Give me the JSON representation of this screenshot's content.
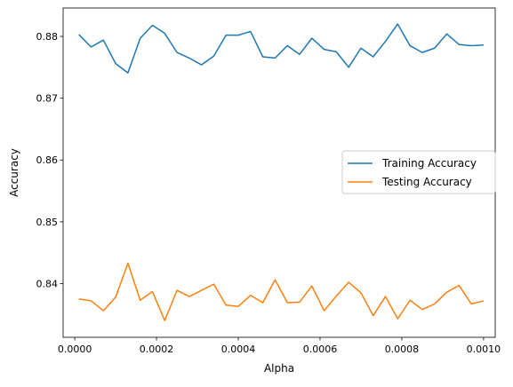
{
  "chart_data": {
    "type": "line",
    "title": "",
    "xlabel": "Alpha",
    "ylabel": "Accuracy",
    "xlim": [
      -2.85e-05,
      0.0010285
    ],
    "ylim": [
      0.8313,
      0.8846
    ],
    "x_ticks": [
      0.0,
      0.0002,
      0.0004,
      0.0006,
      0.0008,
      0.001
    ],
    "x_tick_labels": [
      "0.0000",
      "0.0002",
      "0.0004",
      "0.0006",
      "0.0008",
      "0.0010"
    ],
    "y_ticks": [
      0.84,
      0.85,
      0.86,
      0.87,
      0.88
    ],
    "y_tick_labels": [
      "0.84",
      "0.85",
      "0.86",
      "0.87",
      "0.88"
    ],
    "grid": false,
    "legend_position": "center-right",
    "x": [
      1e-05,
      4e-05,
      7e-05,
      0.0001,
      0.00013,
      0.00016,
      0.00019,
      0.00022,
      0.00025,
      0.00028,
      0.00031,
      0.00034,
      0.00037,
      0.0004,
      0.00043,
      0.00046,
      0.00049,
      0.00052,
      0.00055,
      0.00058,
      0.00061,
      0.00064,
      0.00067,
      0.0007,
      0.00073,
      0.00076,
      0.00079,
      0.00082,
      0.00085,
      0.00088,
      0.00091,
      0.00094,
      0.00097,
      0.001
    ],
    "series": [
      {
        "name": "Training Accuracy",
        "color": "#1f77b4",
        "values": [
          0.8803,
          0.8783,
          0.8794,
          0.8756,
          0.8741,
          0.8797,
          0.8818,
          0.8805,
          0.8774,
          0.8765,
          0.8754,
          0.8768,
          0.8802,
          0.8802,
          0.8808,
          0.8767,
          0.8765,
          0.8785,
          0.8771,
          0.8797,
          0.8779,
          0.8775,
          0.875,
          0.8781,
          0.8767,
          0.8792,
          0.882,
          0.8785,
          0.8774,
          0.8781,
          0.8804,
          0.8787,
          0.8785,
          0.8786
        ]
      },
      {
        "name": "Testing Accuracy",
        "color": "#ff7f0e",
        "values": [
          0.8375,
          0.8372,
          0.8356,
          0.8378,
          0.8433,
          0.8373,
          0.8387,
          0.834,
          0.8389,
          0.8379,
          0.8389,
          0.8399,
          0.8365,
          0.8363,
          0.8381,
          0.8369,
          0.8406,
          0.8369,
          0.837,
          0.8396,
          0.8356,
          0.838,
          0.8402,
          0.8385,
          0.8348,
          0.8379,
          0.8343,
          0.8373,
          0.8358,
          0.8367,
          0.8386,
          0.8397,
          0.8367,
          0.8372
        ]
      }
    ]
  }
}
